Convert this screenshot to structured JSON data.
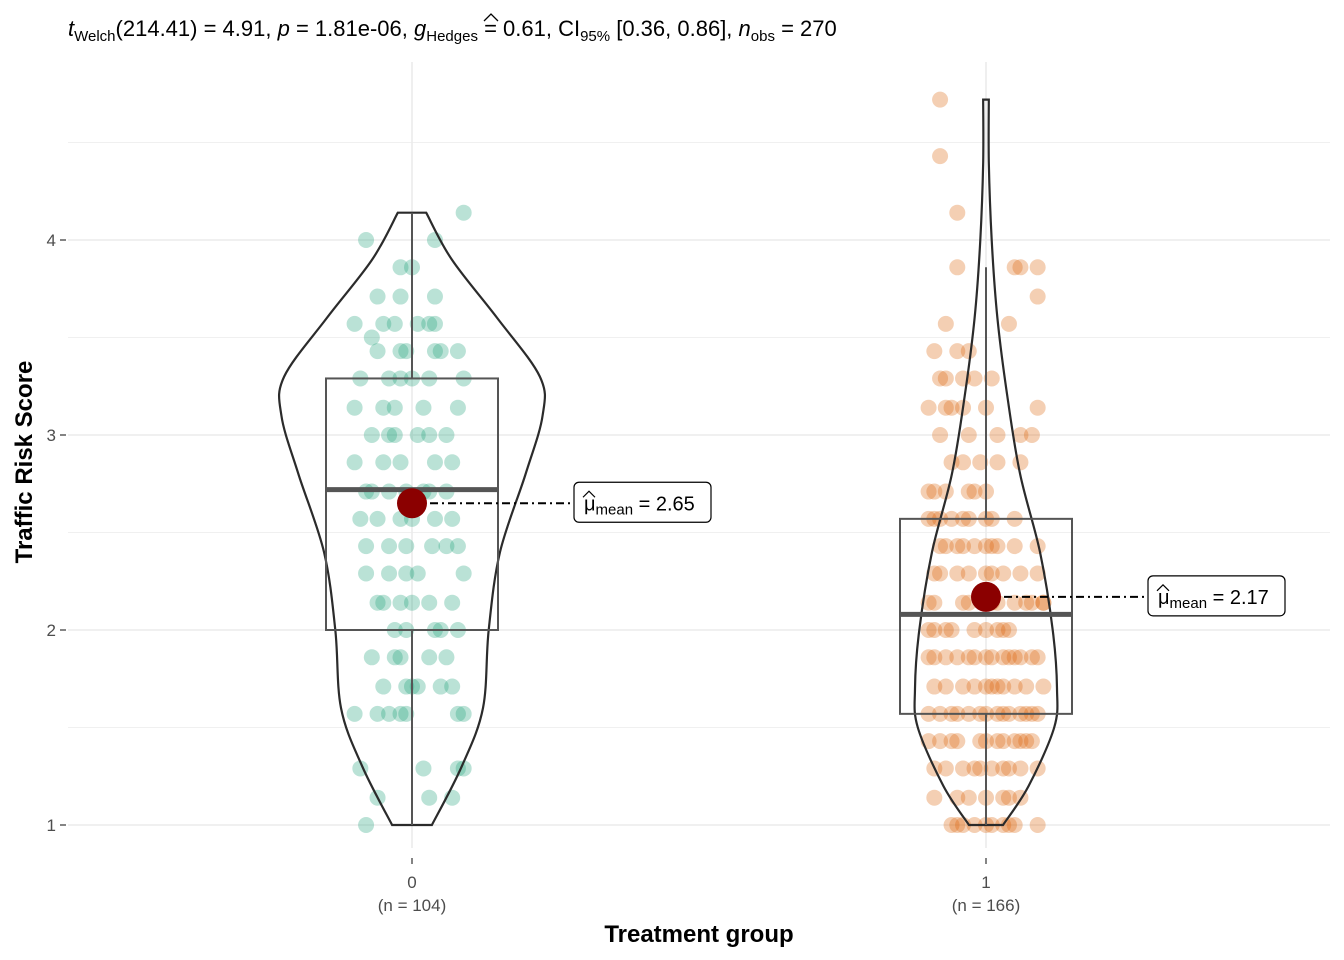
{
  "chart_data": {
    "type": "violin-box-scatter",
    "subtitle": {
      "test_stat": "t",
      "test_sub": "Welch",
      "df": "(214.41) = 4.91, ",
      "p_sym": "p",
      "p_val": " = 1.81e-06, ",
      "es_sym": "g",
      "es_sub": "Hedges",
      "es_val": " = 0.61, CI",
      "ci_sub": "95%",
      "ci_val": " [0.36, 0.86], ",
      "n_sym": "n",
      "n_sub": "obs",
      "n_val": " = 270"
    },
    "xlabel": "Treatment group",
    "ylabel": "Traffic Risk Score",
    "ylim": [
      0.9,
      4.85
    ],
    "yticks": [
      1,
      2,
      3,
      4
    ],
    "groups": [
      {
        "name": "0",
        "n_label": "(n = 104)",
        "color": "#1b9e77",
        "mean": 2.65,
        "mean_label_pre": "μ",
        "mean_label_sub": "mean",
        "mean_label_val": " = 2.65",
        "box": {
          "q1": 2.0,
          "median": 2.72,
          "q3": 3.29,
          "whisker_low": 1.0,
          "whisker_high": 4.14
        },
        "violin": [
          [
            1.0,
            0.14
          ],
          [
            1.3,
            0.35
          ],
          [
            1.6,
            0.5
          ],
          [
            2.0,
            0.54
          ],
          [
            2.4,
            0.62
          ],
          [
            2.8,
            0.8
          ],
          [
            3.1,
            0.92
          ],
          [
            3.3,
            0.9
          ],
          [
            3.6,
            0.6
          ],
          [
            3.9,
            0.28
          ],
          [
            4.14,
            0.1
          ]
        ],
        "points": [
          [
            -0.08,
            4.0
          ],
          [
            -0.1,
            3.57
          ],
          [
            -0.07,
            3.5
          ],
          [
            -0.09,
            3.29
          ],
          [
            -0.1,
            3.14
          ],
          [
            -0.07,
            3.0
          ],
          [
            -0.1,
            2.86
          ],
          [
            -0.08,
            2.71
          ],
          [
            -0.09,
            2.57
          ],
          [
            -0.08,
            2.43
          ],
          [
            -0.08,
            2.29
          ],
          [
            -0.06,
            2.14
          ],
          [
            -0.07,
            1.86
          ],
          [
            -0.1,
            1.57
          ],
          [
            -0.09,
            1.29
          ],
          [
            -0.06,
            1.14
          ],
          [
            -0.08,
            1.0
          ],
          [
            -0.02,
            3.86
          ],
          [
            -0.02,
            3.71
          ],
          [
            0.0,
            3.86
          ],
          [
            -0.05,
            3.57
          ],
          [
            -0.03,
            3.57
          ],
          [
            -0.02,
            3.43
          ],
          [
            -0.01,
            3.43
          ],
          [
            -0.04,
            3.29
          ],
          [
            -0.02,
            3.29
          ],
          [
            -0.05,
            3.14
          ],
          [
            -0.03,
            3.14
          ],
          [
            0.01,
            3.0
          ],
          [
            -0.03,
            3.0
          ],
          [
            -0.01,
            2.71
          ],
          [
            -0.04,
            2.71
          ],
          [
            -0.02,
            2.57
          ],
          [
            0.0,
            2.57
          ],
          [
            -0.04,
            2.43
          ],
          [
            -0.01,
            2.43
          ],
          [
            0.01,
            2.29
          ],
          [
            -0.04,
            2.29
          ],
          [
            -0.02,
            2.14
          ],
          [
            0.0,
            2.14
          ],
          [
            -0.03,
            2.0
          ],
          [
            -0.01,
            2.0
          ],
          [
            -0.02,
            1.86
          ],
          [
            0.03,
            1.86
          ],
          [
            -0.01,
            1.71
          ],
          [
            0.0,
            1.71
          ],
          [
            -0.04,
            1.57
          ],
          [
            -0.02,
            1.57
          ],
          [
            0.04,
            4.0
          ],
          [
            0.04,
            3.71
          ],
          [
            0.04,
            3.57
          ],
          [
            0.04,
            3.43
          ],
          [
            0.03,
            3.29
          ],
          [
            0.03,
            3.0
          ],
          [
            0.04,
            2.86
          ],
          [
            0.03,
            2.71
          ],
          [
            0.04,
            2.57
          ],
          [
            0.035,
            2.43
          ],
          [
            0.04,
            2.0
          ],
          [
            0.05,
            1.71
          ],
          [
            0.02,
            1.29
          ],
          [
            0.03,
            1.14
          ],
          [
            0.09,
            4.14
          ],
          [
            0.08,
            3.43
          ],
          [
            0.09,
            3.29
          ],
          [
            0.08,
            3.14
          ],
          [
            0.06,
            3.0
          ],
          [
            0.07,
            2.57
          ],
          [
            0.08,
            2.43
          ],
          [
            0.09,
            2.29
          ],
          [
            0.08,
            2.0
          ],
          [
            0.07,
            1.71
          ],
          [
            0.09,
            1.57
          ],
          [
            0.09,
            1.29
          ],
          [
            0.07,
            2.86
          ],
          [
            0.06,
            2.71
          ],
          [
            0.07,
            2.14
          ],
          [
            0.06,
            1.86
          ],
          [
            0.08,
            1.57
          ],
          [
            0.08,
            1.29
          ],
          [
            -0.06,
            3.71
          ],
          [
            -0.06,
            3.43
          ],
          [
            -0.04,
            3.0
          ],
          [
            -0.05,
            2.86
          ],
          [
            -0.06,
            2.57
          ],
          [
            -0.05,
            2.14
          ],
          [
            -0.06,
            1.57
          ],
          [
            -0.05,
            1.71
          ],
          [
            0.01,
            3.57
          ],
          [
            0.02,
            3.14
          ],
          [
            0.05,
            3.43
          ],
          [
            0.05,
            2.0
          ],
          [
            0.06,
            2.43
          ],
          [
            -0.03,
            1.86
          ],
          [
            0.0,
            3.29
          ],
          [
            -0.02,
            2.86
          ],
          [
            0.02,
            2.71
          ],
          [
            0.03,
            2.14
          ],
          [
            -0.01,
            1.57
          ],
          [
            0.01,
            1.71
          ],
          [
            -0.07,
            2.71
          ],
          [
            0.07,
            1.14
          ],
          [
            -0.01,
            2.29
          ],
          [
            0.03,
            3.57
          ]
        ]
      },
      {
        "name": "1",
        "n_label": "(n = 166)",
        "color": "#d95f02",
        "mean": 2.17,
        "mean_label_pre": "μ",
        "mean_label_sub": "mean",
        "mean_label_val": " = 2.17",
        "box": {
          "q1": 1.57,
          "median": 2.08,
          "q3": 2.57,
          "whisker_low": 1.0,
          "whisker_high": 3.86
        },
        "violin": [
          [
            1.0,
            0.12
          ],
          [
            1.2,
            0.3
          ],
          [
            1.5,
            0.48
          ],
          [
            1.7,
            0.5
          ],
          [
            2.0,
            0.47
          ],
          [
            2.4,
            0.38
          ],
          [
            2.8,
            0.24
          ],
          [
            3.2,
            0.15
          ],
          [
            3.6,
            0.08
          ],
          [
            4.0,
            0.04
          ],
          [
            4.4,
            0.02
          ],
          [
            4.72,
            0.02
          ]
        ],
        "points": [
          [
            -0.08,
            4.72
          ],
          [
            -0.08,
            4.43
          ],
          [
            -0.05,
            4.14
          ],
          [
            -0.05,
            3.86
          ],
          [
            -0.07,
            3.57
          ],
          [
            -0.09,
            3.43
          ],
          [
            -0.08,
            3.29
          ],
          [
            -0.1,
            3.14
          ],
          [
            -0.08,
            3.0
          ],
          [
            -0.06,
            2.86
          ],
          [
            -0.1,
            2.71
          ],
          [
            -0.09,
            2.57
          ],
          [
            -0.08,
            2.43
          ],
          [
            -0.09,
            2.29
          ],
          [
            -0.1,
            2.14
          ],
          [
            -0.09,
            2.0
          ],
          [
            -0.09,
            1.86
          ],
          [
            -0.09,
            1.71
          ],
          [
            -0.1,
            1.57
          ],
          [
            -0.1,
            1.43
          ],
          [
            -0.09,
            1.29
          ],
          [
            -0.09,
            1.14
          ],
          [
            -0.05,
            1.0
          ],
          [
            -0.03,
            3.43
          ],
          [
            -0.02,
            3.29
          ],
          [
            -0.04,
            3.14
          ],
          [
            -0.03,
            3.0
          ],
          [
            -0.04,
            2.86
          ],
          [
            -0.03,
            2.71
          ],
          [
            -0.04,
            2.57
          ],
          [
            -0.02,
            2.43
          ],
          [
            -0.03,
            2.29
          ],
          [
            -0.04,
            2.14
          ],
          [
            -0.05,
            1.86
          ],
          [
            -0.04,
            1.71
          ],
          [
            -0.03,
            1.57
          ],
          [
            -0.05,
            1.43
          ],
          [
            -0.04,
            1.29
          ],
          [
            -0.03,
            1.14
          ],
          [
            -0.05,
            1.14
          ],
          [
            0.0,
            3.14
          ],
          [
            0.01,
            3.29
          ],
          [
            0.0,
            2.71
          ],
          [
            0.01,
            2.57
          ],
          [
            0.0,
            2.43
          ],
          [
            0.01,
            2.29
          ],
          [
            0.01,
            2.14
          ],
          [
            0.0,
            2.0
          ],
          [
            0.0,
            1.86
          ],
          [
            0.01,
            1.71
          ],
          [
            0.0,
            1.57
          ],
          [
            0.0,
            1.43
          ],
          [
            0.01,
            1.29
          ],
          [
            0.0,
            1.14
          ],
          [
            0.0,
            1.0
          ],
          [
            0.02,
            2.86
          ],
          [
            0.02,
            2.14
          ],
          [
            0.02,
            2.0
          ],
          [
            0.03,
            1.86
          ],
          [
            0.03,
            1.71
          ],
          [
            0.03,
            1.57
          ],
          [
            0.03,
            1.43
          ],
          [
            0.03,
            1.29
          ],
          [
            0.03,
            1.14
          ],
          [
            0.04,
            1.0
          ],
          [
            0.05,
            3.86
          ],
          [
            0.06,
            3.86
          ],
          [
            0.04,
            3.57
          ],
          [
            0.06,
            3.0
          ],
          [
            0.06,
            2.86
          ],
          [
            0.05,
            2.43
          ],
          [
            0.06,
            2.29
          ],
          [
            0.05,
            2.14
          ],
          [
            0.04,
            2.0
          ],
          [
            0.06,
            1.86
          ],
          [
            0.05,
            1.71
          ],
          [
            0.06,
            1.57
          ],
          [
            0.05,
            1.43
          ],
          [
            0.06,
            1.29
          ],
          [
            0.06,
            1.14
          ],
          [
            0.05,
            1.0
          ],
          [
            0.09,
            3.86
          ],
          [
            0.09,
            3.71
          ],
          [
            0.09,
            3.14
          ],
          [
            0.08,
            3.0
          ],
          [
            0.09,
            2.43
          ],
          [
            0.09,
            2.29
          ],
          [
            0.1,
            2.14
          ],
          [
            0.08,
            2.14
          ],
          [
            0.09,
            1.86
          ],
          [
            0.1,
            1.71
          ],
          [
            0.09,
            1.57
          ],
          [
            0.08,
            1.43
          ],
          [
            0.09,
            1.29
          ],
          [
            0.09,
            1.0
          ],
          [
            -0.1,
            1.86
          ],
          [
            -0.1,
            2.0
          ],
          [
            -0.09,
            2.14
          ],
          [
            -0.07,
            1.71
          ],
          [
            -0.07,
            1.29
          ],
          [
            -0.06,
            1.43
          ],
          [
            -0.06,
            1.57
          ],
          [
            -0.07,
            2.43
          ],
          [
            -0.06,
            2.57
          ],
          [
            -0.07,
            2.71
          ],
          [
            -0.07,
            3.29
          ],
          [
            -0.07,
            3.14
          ],
          [
            -0.02,
            1.86
          ],
          [
            -0.02,
            1.71
          ],
          [
            -0.01,
            1.43
          ],
          [
            -0.01,
            1.29
          ],
          [
            -0.02,
            1.0
          ],
          [
            -0.02,
            2.0
          ],
          [
            0.02,
            1.57
          ],
          [
            0.02,
            1.71
          ],
          [
            0.02,
            1.43
          ],
          [
            0.01,
            1.86
          ],
          [
            0.02,
            2.43
          ],
          [
            0.04,
            1.86
          ],
          [
            0.04,
            1.57
          ],
          [
            0.04,
            1.14
          ],
          [
            0.07,
            1.71
          ],
          [
            0.07,
            1.57
          ],
          [
            0.07,
            1.43
          ],
          [
            0.08,
            1.86
          ],
          [
            -0.08,
            1.57
          ],
          [
            -0.08,
            1.43
          ],
          [
            -0.08,
            2.29
          ],
          [
            -0.08,
            2.57
          ],
          [
            -0.05,
            3.43
          ],
          [
            -0.04,
            3.29
          ],
          [
            -0.06,
            3.14
          ],
          [
            -0.05,
            2.43
          ],
          [
            -0.06,
            2.0
          ],
          [
            -0.03,
            2.57
          ],
          [
            -0.01,
            2.86
          ],
          [
            -0.01,
            1.57
          ],
          [
            0.0,
            2.29
          ],
          [
            0.03,
            2.0
          ],
          [
            0.04,
            1.29
          ],
          [
            -0.05,
            1.57
          ],
          [
            -0.06,
            1.0
          ],
          [
            0.03,
            1.0
          ],
          [
            -0.04,
            2.43
          ],
          [
            -0.02,
            1.29
          ],
          [
            0.0,
            1.71
          ],
          [
            0.01,
            1.0
          ],
          [
            0.02,
            3.0
          ],
          [
            -0.07,
            1.86
          ],
          [
            -0.09,
            2.71
          ],
          [
            0.05,
            1.86
          ],
          [
            -0.03,
            1.86
          ],
          [
            0.07,
            2.14
          ],
          [
            -0.03,
            2.14
          ],
          [
            0.05,
            2.57
          ],
          [
            0.01,
            2.43
          ],
          [
            -0.02,
            2.71
          ],
          [
            0.06,
            1.43
          ],
          [
            -0.04,
            1.0
          ],
          [
            0.08,
            1.57
          ],
          [
            -0.1,
            2.57
          ],
          [
            0.1,
            2.14
          ],
          [
            -0.05,
            2.29
          ],
          [
            0.0,
            2.57
          ],
          [
            0.03,
            2.29
          ],
          [
            -0.07,
            2.0
          ]
        ]
      }
    ]
  }
}
